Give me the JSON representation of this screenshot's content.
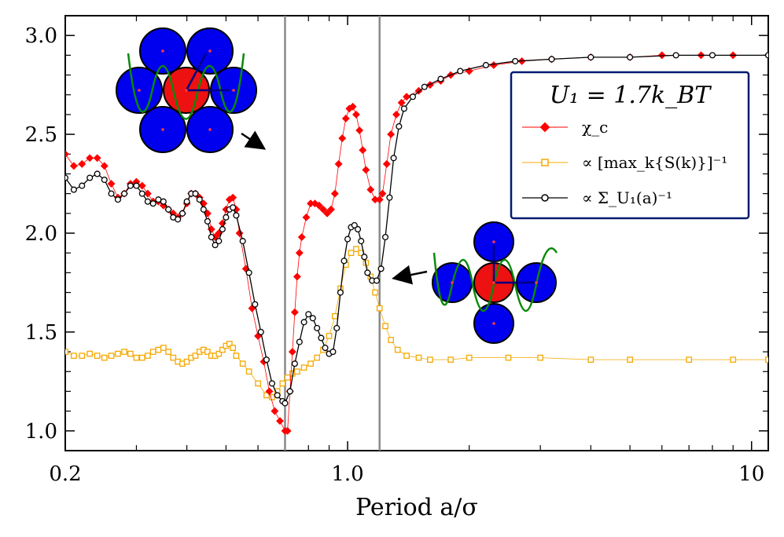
{
  "chart_data": {
    "type": "line",
    "xscale": "log",
    "xlabel": "Period a/σ",
    "ylabel": "",
    "xlim": [
      0.2,
      11
    ],
    "ylim": [
      0.9,
      3.1
    ],
    "x_tick_labels": [
      {
        "value": 0.2,
        "label": "0.2"
      },
      {
        "value": 1.0,
        "label": "1.0"
      },
      {
        "value": 10,
        "label": "10"
      }
    ],
    "y_tick_labels": [
      {
        "value": 1.0,
        "label": "1.0"
      },
      {
        "value": 1.5,
        "label": "1.5"
      },
      {
        "value": 2.0,
        "label": "2.0"
      },
      {
        "value": 2.5,
        "label": "2.5"
      },
      {
        "value": 3.0,
        "label": "3.0"
      }
    ],
    "legend": {
      "title": "U₁ = 1.7k_BT",
      "placement": "top-right",
      "entries": [
        "χ_c",
        "∝ [max_k{S(k)}]⁻¹",
        "∝ Σ_U₁(a)⁻¹"
      ]
    },
    "vertical_lines": [
      0.7,
      1.2
    ],
    "series": [
      {
        "name": "χ_c",
        "color": "#ff0000",
        "marker": "diamond",
        "points": [
          [
            0.2,
            2.4
          ],
          [
            0.21,
            2.34
          ],
          [
            0.22,
            2.35
          ],
          [
            0.23,
            2.38
          ],
          [
            0.24,
            2.38
          ],
          [
            0.25,
            2.34
          ],
          [
            0.26,
            2.25
          ],
          [
            0.27,
            2.18
          ],
          [
            0.28,
            2.2
          ],
          [
            0.29,
            2.25
          ],
          [
            0.3,
            2.26
          ],
          [
            0.31,
            2.24
          ],
          [
            0.32,
            2.2
          ],
          [
            0.33,
            2.16
          ],
          [
            0.34,
            2.16
          ],
          [
            0.35,
            2.14
          ],
          [
            0.36,
            2.12
          ],
          [
            0.37,
            2.1
          ],
          [
            0.38,
            2.08
          ],
          [
            0.39,
            2.1
          ],
          [
            0.4,
            2.15
          ],
          [
            0.41,
            2.2
          ],
          [
            0.42,
            2.2
          ],
          [
            0.43,
            2.18
          ],
          [
            0.44,
            2.15
          ],
          [
            0.45,
            2.1
          ],
          [
            0.46,
            2.02
          ],
          [
            0.47,
            1.98
          ],
          [
            0.48,
            2.0
          ],
          [
            0.49,
            2.05
          ],
          [
            0.5,
            2.12
          ],
          [
            0.51,
            2.17
          ],
          [
            0.52,
            2.18
          ],
          [
            0.53,
            2.12
          ],
          [
            0.54,
            2.0
          ],
          [
            0.56,
            1.82
          ],
          [
            0.58,
            1.62
          ],
          [
            0.6,
            1.48
          ],
          [
            0.62,
            1.35
          ],
          [
            0.64,
            1.2
          ],
          [
            0.66,
            1.1
          ],
          [
            0.68,
            1.05
          ],
          [
            0.7,
            1.0
          ],
          [
            0.71,
            1.0
          ],
          [
            0.72,
            1.2
          ],
          [
            0.73,
            1.4
          ],
          [
            0.74,
            1.6
          ],
          [
            0.75,
            1.78
          ],
          [
            0.76,
            1.9
          ],
          [
            0.77,
            1.98
          ],
          [
            0.79,
            2.08
          ],
          [
            0.81,
            2.15
          ],
          [
            0.83,
            2.15
          ],
          [
            0.85,
            2.14
          ],
          [
            0.87,
            2.12
          ],
          [
            0.89,
            2.1
          ],
          [
            0.91,
            2.12
          ],
          [
            0.93,
            2.2
          ],
          [
            0.95,
            2.35
          ],
          [
            0.97,
            2.48
          ],
          [
            0.99,
            2.58
          ],
          [
            1.01,
            2.63
          ],
          [
            1.03,
            2.64
          ],
          [
            1.05,
            2.6
          ],
          [
            1.07,
            2.52
          ],
          [
            1.09,
            2.42
          ],
          [
            1.11,
            2.32
          ],
          [
            1.14,
            2.22
          ],
          [
            1.17,
            2.17
          ],
          [
            1.2,
            2.17
          ],
          [
            1.22,
            2.2
          ],
          [
            1.25,
            2.35
          ],
          [
            1.28,
            2.5
          ],
          [
            1.32,
            2.6
          ],
          [
            1.36,
            2.66
          ],
          [
            1.4,
            2.69
          ],
          [
            1.5,
            2.72
          ],
          [
            1.6,
            2.75
          ],
          [
            1.7,
            2.77
          ],
          [
            1.8,
            2.8
          ],
          [
            2.0,
            2.82
          ],
          [
            2.3,
            2.85
          ],
          [
            2.7,
            2.87
          ],
          [
            3.2,
            2.88
          ],
          [
            4.0,
            2.89
          ],
          [
            5.0,
            2.89
          ],
          [
            6.0,
            2.9
          ],
          [
            7.5,
            2.9
          ],
          [
            9.0,
            2.9
          ],
          [
            11.0,
            2.9
          ]
        ]
      },
      {
        "name": "∝ [max_k{S(k)}]⁻¹",
        "color": "#f5a800",
        "marker": "square",
        "points": [
          [
            0.2,
            1.4
          ],
          [
            0.21,
            1.38
          ],
          [
            0.22,
            1.38
          ],
          [
            0.23,
            1.39
          ],
          [
            0.24,
            1.38
          ],
          [
            0.25,
            1.37
          ],
          [
            0.26,
            1.38
          ],
          [
            0.27,
            1.39
          ],
          [
            0.28,
            1.4
          ],
          [
            0.29,
            1.39
          ],
          [
            0.3,
            1.37
          ],
          [
            0.31,
            1.37
          ],
          [
            0.32,
            1.38
          ],
          [
            0.33,
            1.4
          ],
          [
            0.34,
            1.41
          ],
          [
            0.35,
            1.42
          ],
          [
            0.36,
            1.4
          ],
          [
            0.37,
            1.37
          ],
          [
            0.38,
            1.35
          ],
          [
            0.39,
            1.34
          ],
          [
            0.4,
            1.35
          ],
          [
            0.41,
            1.37
          ],
          [
            0.42,
            1.38
          ],
          [
            0.43,
            1.4
          ],
          [
            0.44,
            1.41
          ],
          [
            0.45,
            1.4
          ],
          [
            0.46,
            1.38
          ],
          [
            0.47,
            1.38
          ],
          [
            0.48,
            1.39
          ],
          [
            0.49,
            1.41
          ],
          [
            0.5,
            1.43
          ],
          [
            0.51,
            1.44
          ],
          [
            0.52,
            1.42
          ],
          [
            0.53,
            1.38
          ],
          [
            0.55,
            1.34
          ],
          [
            0.57,
            1.3
          ],
          [
            0.6,
            1.24
          ],
          [
            0.63,
            1.18
          ],
          [
            0.65,
            1.17
          ],
          [
            0.67,
            1.2
          ],
          [
            0.69,
            1.24
          ],
          [
            0.71,
            1.27
          ],
          [
            0.73,
            1.29
          ],
          [
            0.75,
            1.3
          ],
          [
            0.78,
            1.32
          ],
          [
            0.81,
            1.34
          ],
          [
            0.84,
            1.37
          ],
          [
            0.87,
            1.41
          ],
          [
            0.9,
            1.48
          ],
          [
            0.93,
            1.58
          ],
          [
            0.96,
            1.72
          ],
          [
            0.99,
            1.84
          ],
          [
            1.02,
            1.9
          ],
          [
            1.05,
            1.92
          ],
          [
            1.08,
            1.9
          ],
          [
            1.11,
            1.85
          ],
          [
            1.14,
            1.78
          ],
          [
            1.17,
            1.7
          ],
          [
            1.2,
            1.62
          ],
          [
            1.24,
            1.53
          ],
          [
            1.28,
            1.46
          ],
          [
            1.33,
            1.41
          ],
          [
            1.4,
            1.38
          ],
          [
            1.5,
            1.37
          ],
          [
            1.6,
            1.36
          ],
          [
            1.8,
            1.36
          ],
          [
            2.0,
            1.37
          ],
          [
            2.5,
            1.37
          ],
          [
            3.0,
            1.37
          ],
          [
            4.0,
            1.36
          ],
          [
            5.0,
            1.36
          ],
          [
            7.0,
            1.36
          ],
          [
            9.0,
            1.36
          ],
          [
            11.0,
            1.36
          ]
        ]
      },
      {
        "name": "∝ Σ_U₁(a)⁻¹",
        "color": "#000000",
        "marker": "circle",
        "points": [
          [
            0.2,
            2.28
          ],
          [
            0.21,
            2.22
          ],
          [
            0.22,
            2.24
          ],
          [
            0.23,
            2.28
          ],
          [
            0.24,
            2.3
          ],
          [
            0.25,
            2.27
          ],
          [
            0.26,
            2.2
          ],
          [
            0.27,
            2.17
          ],
          [
            0.28,
            2.2
          ],
          [
            0.29,
            2.24
          ],
          [
            0.3,
            2.24
          ],
          [
            0.31,
            2.2
          ],
          [
            0.32,
            2.16
          ],
          [
            0.33,
            2.15
          ],
          [
            0.34,
            2.17
          ],
          [
            0.35,
            2.16
          ],
          [
            0.36,
            2.12
          ],
          [
            0.37,
            2.08
          ],
          [
            0.38,
            2.07
          ],
          [
            0.39,
            2.1
          ],
          [
            0.4,
            2.16
          ],
          [
            0.41,
            2.2
          ],
          [
            0.42,
            2.2
          ],
          [
            0.43,
            2.17
          ],
          [
            0.44,
            2.12
          ],
          [
            0.45,
            2.06
          ],
          [
            0.46,
            1.98
          ],
          [
            0.47,
            1.94
          ],
          [
            0.48,
            1.96
          ],
          [
            0.49,
            2.02
          ],
          [
            0.5,
            2.08
          ],
          [
            0.51,
            2.12
          ],
          [
            0.52,
            2.13
          ],
          [
            0.53,
            2.09
          ],
          [
            0.55,
            1.96
          ],
          [
            0.57,
            1.8
          ],
          [
            0.59,
            1.64
          ],
          [
            0.61,
            1.5
          ],
          [
            0.63,
            1.36
          ],
          [
            0.65,
            1.24
          ],
          [
            0.67,
            1.18
          ],
          [
            0.69,
            1.15
          ],
          [
            0.7,
            1.14
          ],
          [
            0.72,
            1.2
          ],
          [
            0.74,
            1.34
          ],
          [
            0.76,
            1.45
          ],
          [
            0.78,
            1.55
          ],
          [
            0.8,
            1.59
          ],
          [
            0.82,
            1.57
          ],
          [
            0.84,
            1.52
          ],
          [
            0.86,
            1.47
          ],
          [
            0.88,
            1.42
          ],
          [
            0.9,
            1.39
          ],
          [
            0.92,
            1.4
          ],
          [
            0.94,
            1.52
          ],
          [
            0.96,
            1.7
          ],
          [
            0.98,
            1.86
          ],
          [
            1.0,
            1.97
          ],
          [
            1.02,
            2.03
          ],
          [
            1.04,
            2.04
          ],
          [
            1.06,
            2.02
          ],
          [
            1.08,
            1.96
          ],
          [
            1.1,
            1.88
          ],
          [
            1.12,
            1.8
          ],
          [
            1.15,
            1.76
          ],
          [
            1.18,
            1.76
          ],
          [
            1.21,
            1.82
          ],
          [
            1.24,
            1.98
          ],
          [
            1.27,
            2.18
          ],
          [
            1.3,
            2.38
          ],
          [
            1.34,
            2.54
          ],
          [
            1.38,
            2.63
          ],
          [
            1.45,
            2.69
          ],
          [
            1.55,
            2.74
          ],
          [
            1.7,
            2.78
          ],
          [
            1.9,
            2.82
          ],
          [
            2.2,
            2.85
          ],
          [
            2.6,
            2.87
          ],
          [
            3.2,
            2.88
          ],
          [
            4.0,
            2.89
          ],
          [
            5.0,
            2.89
          ],
          [
            6.5,
            2.9
          ],
          [
            8.0,
            2.9
          ],
          [
            11.0,
            2.9
          ]
        ]
      }
    ]
  }
}
